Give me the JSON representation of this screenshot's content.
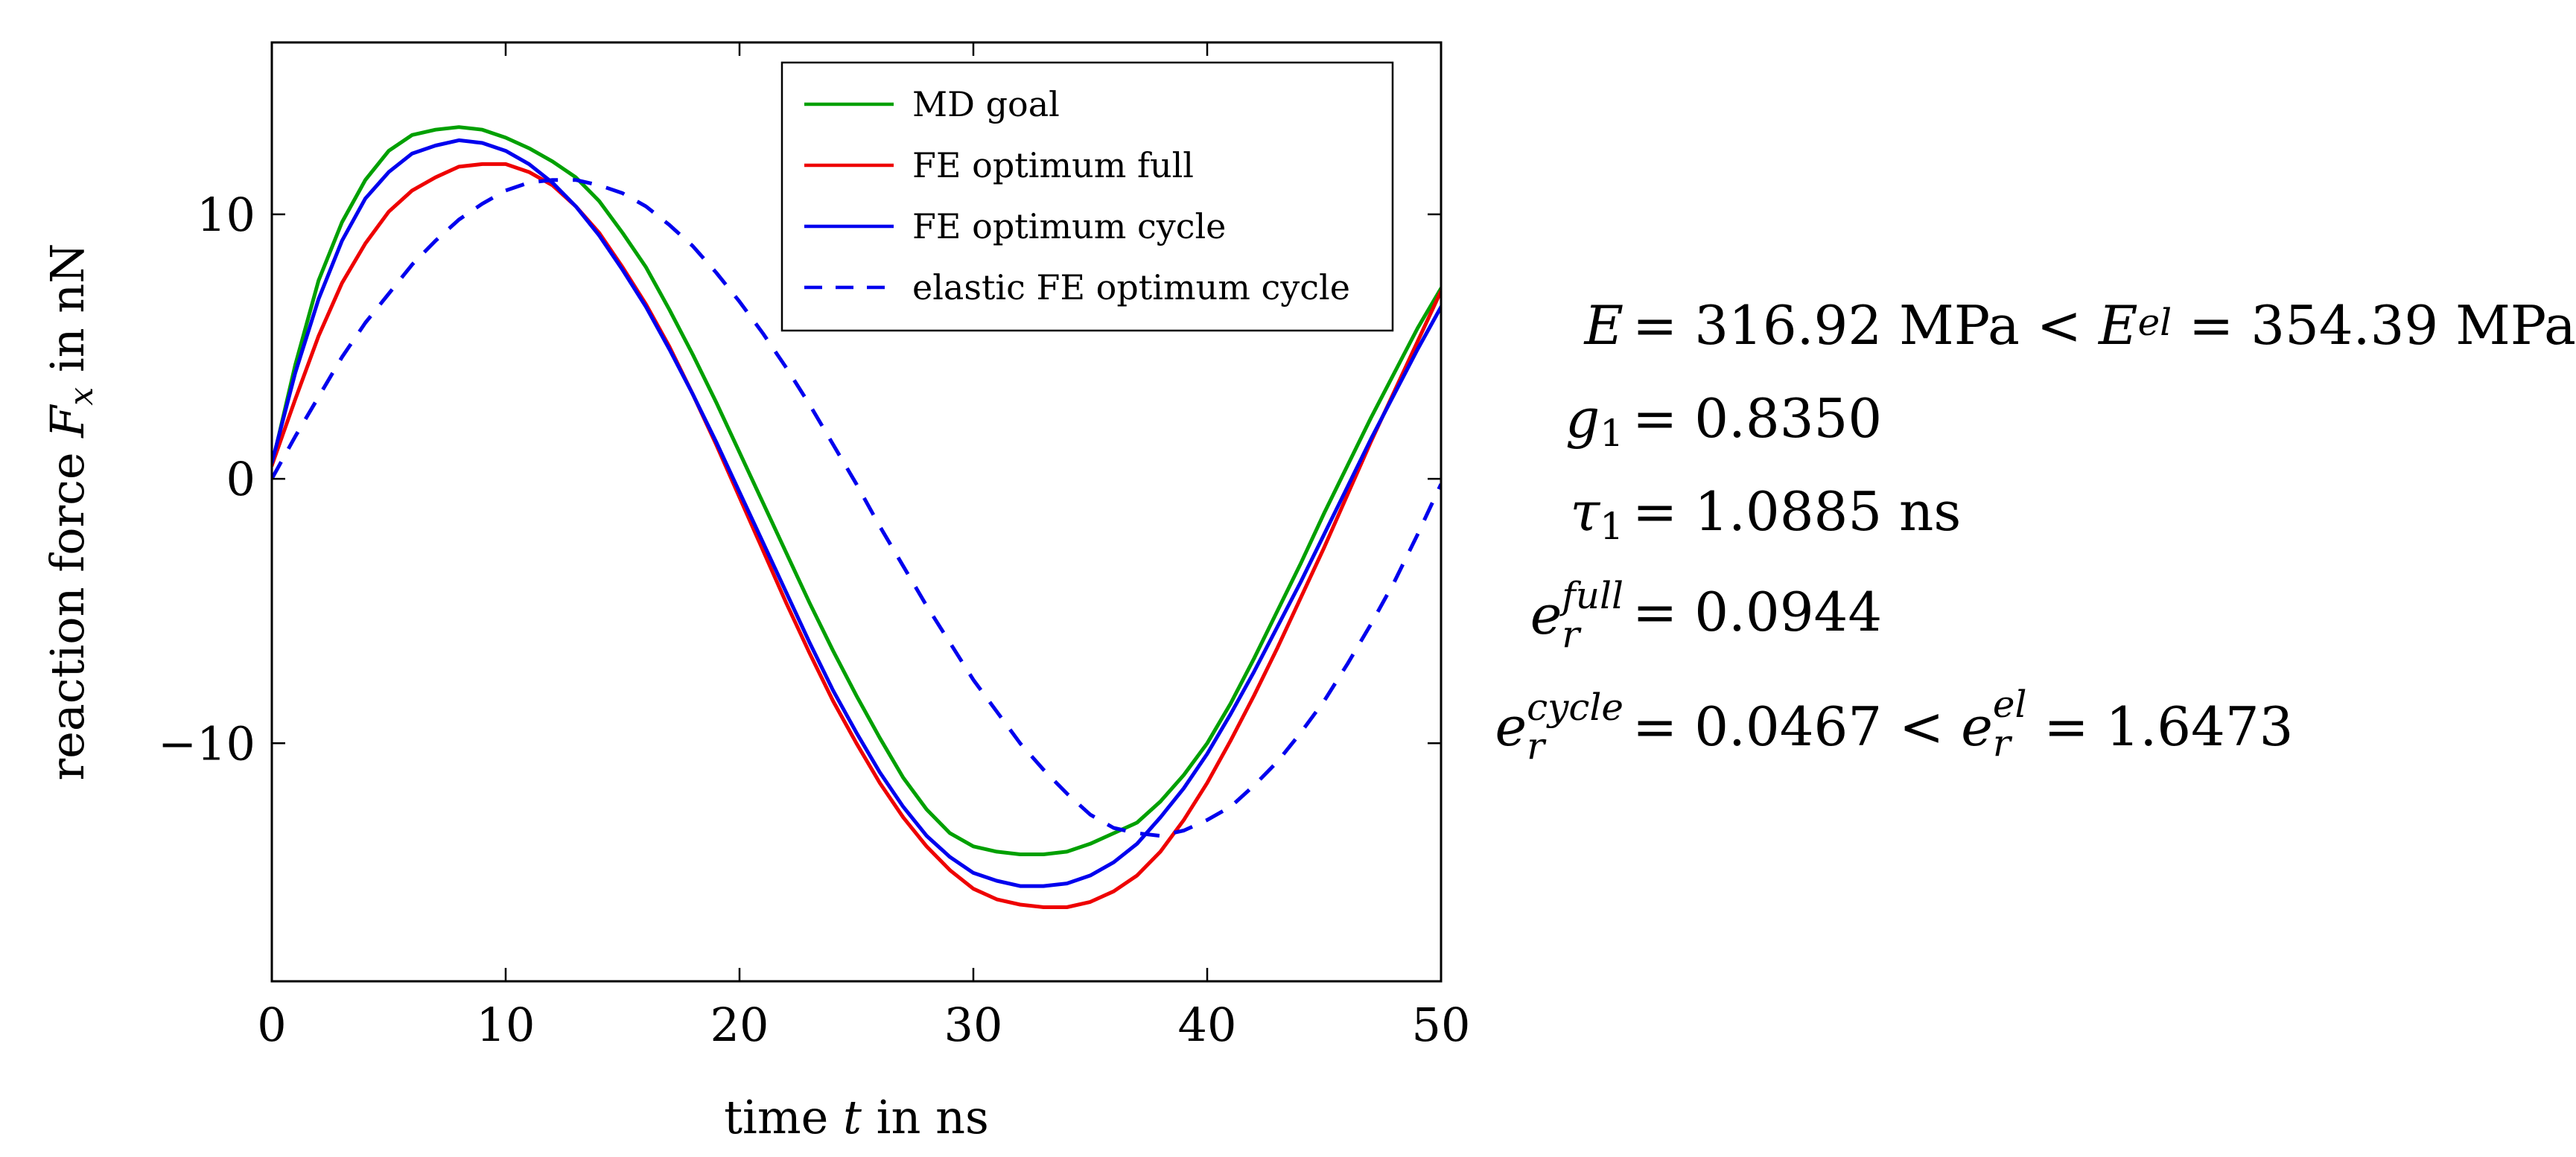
{
  "chart_data": {
    "type": "line",
    "xlabel": "time t in ns",
    "ylabel": "reaction force F_x in nN",
    "xlim": [
      0,
      50
    ],
    "ylim": [
      -19,
      16.5
    ],
    "xticks": [
      0,
      10,
      20,
      30,
      40,
      50
    ],
    "xtick_labels": [
      "0",
      "10",
      "20",
      "30",
      "40",
      "50"
    ],
    "yticks": [
      10,
      0,
      -10
    ],
    "ytick_labels": [
      "10",
      "0",
      "−10"
    ],
    "grid": false,
    "legend_position": "top-right",
    "series": [
      {
        "name": "MD goal",
        "color": "#00a000",
        "dash": "solid",
        "x": [
          0,
          1,
          2,
          3,
          4,
          5,
          6,
          7,
          8,
          9,
          10,
          11,
          12,
          13,
          14,
          15,
          16,
          17,
          18,
          19,
          20,
          21,
          22,
          23,
          24,
          25,
          26,
          27,
          28,
          29,
          30,
          31,
          32,
          33,
          34,
          35,
          36,
          37,
          38,
          39,
          40,
          41,
          42,
          43,
          44,
          45,
          46,
          47,
          48,
          49,
          50
        ],
        "y": [
          0.5,
          4.3,
          7.5,
          9.7,
          11.3,
          12.4,
          13.0,
          13.2,
          13.3,
          13.2,
          12.9,
          12.5,
          12.0,
          11.4,
          10.5,
          9.3,
          8.0,
          6.4,
          4.7,
          2.9,
          1.0,
          -0.9,
          -2.8,
          -4.7,
          -6.5,
          -8.2,
          -9.8,
          -11.3,
          -12.5,
          -13.4,
          -13.9,
          -14.1,
          -14.2,
          -14.2,
          -14.1,
          -13.8,
          -13.4,
          -13.0,
          -12.2,
          -11.2,
          -10.0,
          -8.5,
          -6.8,
          -5.0,
          -3.2,
          -1.3,
          0.5,
          2.3,
          4.0,
          5.7,
          7.2
        ]
      },
      {
        "name": "FE optimum full",
        "color": "#ee0000",
        "dash": "solid",
        "x": [
          0,
          1,
          2,
          3,
          4,
          5,
          6,
          7,
          8,
          9,
          10,
          11,
          12,
          13,
          14,
          15,
          16,
          17,
          18,
          19,
          20,
          21,
          22,
          23,
          24,
          25,
          26,
          27,
          28,
          29,
          30,
          31,
          32,
          33,
          34,
          35,
          36,
          37,
          38,
          39,
          40,
          41,
          42,
          43,
          44,
          45,
          46,
          47,
          48,
          49,
          50
        ],
        "y": [
          0.5,
          3.0,
          5.4,
          7.4,
          8.9,
          10.1,
          10.9,
          11.4,
          11.8,
          11.9,
          11.9,
          11.6,
          11.1,
          10.3,
          9.3,
          8.0,
          6.6,
          5.0,
          3.2,
          1.3,
          -0.7,
          -2.7,
          -4.7,
          -6.6,
          -8.4,
          -10.0,
          -11.5,
          -12.8,
          -13.9,
          -14.8,
          -15.5,
          -15.9,
          -16.1,
          -16.2,
          -16.2,
          -16.0,
          -15.6,
          -15.0,
          -14.1,
          -12.9,
          -11.5,
          -9.9,
          -8.2,
          -6.4,
          -4.5,
          -2.6,
          -0.6,
          1.4,
          3.3,
          5.2,
          7.1
        ]
      },
      {
        "name": "FE optimum cycle",
        "color": "#0000ee",
        "dash": "solid",
        "x": [
          0,
          1,
          2,
          3,
          4,
          5,
          6,
          7,
          8,
          9,
          10,
          11,
          12,
          13,
          14,
          15,
          16,
          17,
          18,
          19,
          20,
          21,
          22,
          23,
          24,
          25,
          26,
          27,
          28,
          29,
          30,
          31,
          32,
          33,
          34,
          35,
          36,
          37,
          38,
          39,
          40,
          41,
          42,
          43,
          44,
          45,
          46,
          47,
          48,
          49,
          50
        ],
        "y": [
          0.6,
          4.0,
          6.8,
          9.0,
          10.6,
          11.6,
          12.3,
          12.6,
          12.8,
          12.7,
          12.4,
          11.9,
          11.2,
          10.3,
          9.2,
          7.9,
          6.5,
          4.9,
          3.2,
          1.4,
          -0.5,
          -2.4,
          -4.3,
          -6.2,
          -8.0,
          -9.6,
          -11.1,
          -12.4,
          -13.5,
          -14.3,
          -14.9,
          -15.2,
          -15.4,
          -15.4,
          -15.3,
          -15.0,
          -14.5,
          -13.8,
          -12.8,
          -11.7,
          -10.4,
          -8.9,
          -7.3,
          -5.6,
          -3.9,
          -2.1,
          -0.3,
          1.5,
          3.2,
          4.9,
          6.5
        ]
      },
      {
        "name": "elastic FE optimum cycle",
        "color": "#0000ee",
        "dash": "dashed",
        "x": [
          0,
          1,
          2,
          3,
          4,
          5,
          6,
          7,
          8,
          9,
          10,
          11,
          12,
          13,
          14,
          15,
          16,
          17,
          18,
          19,
          20,
          21,
          22,
          23,
          24,
          25,
          26,
          27,
          28,
          29,
          30,
          31,
          32,
          33,
          34,
          35,
          36,
          37,
          38,
          39,
          40,
          41,
          42,
          43,
          44,
          45,
          46,
          47,
          48,
          49,
          50
        ],
        "y": [
          0.0,
          1.6,
          3.1,
          4.6,
          5.9,
          7.0,
          8.1,
          9.0,
          9.8,
          10.4,
          10.9,
          11.2,
          11.3,
          11.3,
          11.1,
          10.8,
          10.3,
          9.6,
          8.8,
          7.8,
          6.7,
          5.5,
          4.2,
          2.8,
          1.3,
          -0.2,
          -1.8,
          -3.3,
          -4.8,
          -6.2,
          -7.6,
          -8.8,
          -10.0,
          -11.0,
          -11.9,
          -12.7,
          -13.2,
          -13.4,
          -13.5,
          -13.3,
          -12.9,
          -12.4,
          -11.6,
          -10.7,
          -9.6,
          -8.4,
          -7.0,
          -5.5,
          -3.9,
          -2.1,
          -0.2
        ]
      }
    ]
  },
  "equations": [
    {
      "lhs_sym": "E",
      "lhs_sup": "",
      "lhs_sub": "",
      "rhs": "= 316.92 MPa < ",
      "rhs2_sym": "E",
      "rhs2_sup": "el",
      "rhs2_sub": "",
      "rhs3": " = 354.39 MPa"
    },
    {
      "lhs_sym": "g",
      "lhs_sup": "",
      "lhs_sub": "1",
      "rhs": "= 0.8350",
      "rhs2_sym": "",
      "rhs2_sup": "",
      "rhs2_sub": "",
      "rhs3": ""
    },
    {
      "lhs_sym": "τ",
      "lhs_sup": "",
      "lhs_sub": "1",
      "rhs": "= 1.0885 ns",
      "rhs2_sym": "",
      "rhs2_sup": "",
      "rhs2_sub": "",
      "rhs3": ""
    },
    {
      "lhs_sym": "e",
      "lhs_sup": "full",
      "lhs_sub": "r",
      "rhs": "= 0.0944",
      "rhs2_sym": "",
      "rhs2_sup": "",
      "rhs2_sub": "",
      "rhs3": ""
    },
    {
      "lhs_sym": "e",
      "lhs_sup": "cycle",
      "lhs_sub": "r",
      "rhs": "= 0.0467 < ",
      "rhs2_sym": "e",
      "rhs2_sup": "el",
      "rhs2_sub": "r",
      "rhs3": " = 1.6473"
    }
  ]
}
